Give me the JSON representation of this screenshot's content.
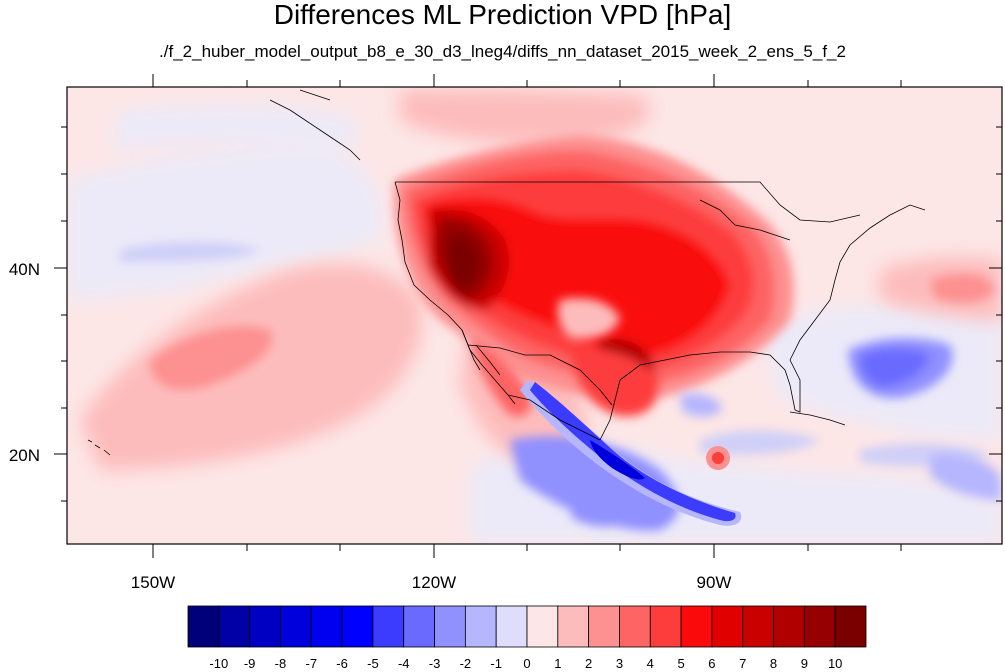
{
  "title": "Differences ML Prediction VPD [hPa]",
  "subtitle": "./f_2_huber_model_output_b8_e_30_d3_lneg4/diffs_nn_dataset_2015_week_2_ens_5_f_2",
  "map": {
    "lon_range": [
      -159.5,
      -59.5
    ],
    "lat_range": [
      10,
      59.5
    ],
    "lat_ticks": [
      {
        "value": 40,
        "label": "40N"
      },
      {
        "value": 20,
        "label": "20N"
      }
    ],
    "lon_ticks": [
      {
        "value": -150,
        "label": "150W"
      },
      {
        "value": -120,
        "label": "120W"
      },
      {
        "value": -90,
        "label": "90W"
      }
    ]
  },
  "colorbar": {
    "labels": [
      "-10",
      "-9",
      "-8",
      "-7",
      "-6",
      "-5",
      "-4",
      "-3",
      "-2",
      "-1",
      "0",
      "1",
      "2",
      "3",
      "4",
      "5",
      "6",
      "7",
      "8",
      "9",
      "10"
    ],
    "colors": [
      "#00007a",
      "#0000a4",
      "#0000c2",
      "#0000dc",
      "#0000f0",
      "#0000ff",
      "#3c3cff",
      "#6a6aff",
      "#9090ff",
      "#b6b6ff",
      "#dedefc",
      "#fde6e6",
      "#fdbcbc",
      "#fd9090",
      "#fd6464",
      "#fd3c3c",
      "#fa0a0a",
      "#e00000",
      "#c80000",
      "#b00000",
      "#960000",
      "#7a0000"
    ]
  }
}
